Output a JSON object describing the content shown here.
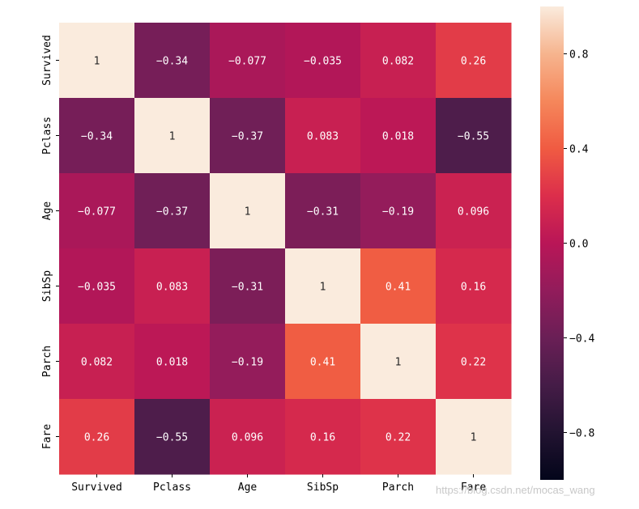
{
  "chart_data": {
    "type": "heatmap",
    "title": "",
    "xlabel": "",
    "ylabel": "",
    "labels": [
      "Survived",
      "Pclass",
      "Age",
      "SibSp",
      "Parch",
      "Fare"
    ],
    "matrix": [
      [
        1,
        -0.34,
        -0.077,
        -0.035,
        0.082,
        0.26
      ],
      [
        -0.34,
        1,
        -0.37,
        0.083,
        0.018,
        -0.55
      ],
      [
        -0.077,
        -0.37,
        1,
        -0.31,
        -0.19,
        0.096
      ],
      [
        -0.035,
        0.083,
        -0.31,
        1,
        0.41,
        0.16
      ],
      [
        0.082,
        0.018,
        -0.19,
        0.41,
        1,
        0.22
      ],
      [
        0.26,
        -0.55,
        0.096,
        0.16,
        0.22,
        1
      ]
    ],
    "annotations": [
      [
        "1",
        "-0.34",
        "-0.077",
        "-0.035",
        "0.082",
        "0.26"
      ],
      [
        "-0.34",
        "1",
        "-0.37",
        "0.083",
        "0.018",
        "-0.55"
      ],
      [
        "-0.077",
        "-0.37",
        "1",
        "-0.31",
        "-0.19",
        "0.096"
      ],
      [
        "-0.035",
        "0.083",
        "-0.31",
        "1",
        "0.41",
        "0.16"
      ],
      [
        "0.082",
        "0.018",
        "-0.19",
        "0.41",
        "1",
        "0.22"
      ],
      [
        "0.26",
        "-0.55",
        "0.096",
        "0.16",
        "0.22",
        "1"
      ]
    ],
    "vmin": -1,
    "vmax": 1,
    "colormap": "rocket",
    "colorbar": {
      "ticks": [
        0.8,
        0.4,
        0.0,
        -0.4,
        -0.8
      ],
      "tick_labels": [
        "0.8",
        "0.4",
        "0.0",
        "−0.4",
        "−0.8"
      ]
    }
  },
  "watermark": "https://blog.csdn.net/mocas_wang"
}
